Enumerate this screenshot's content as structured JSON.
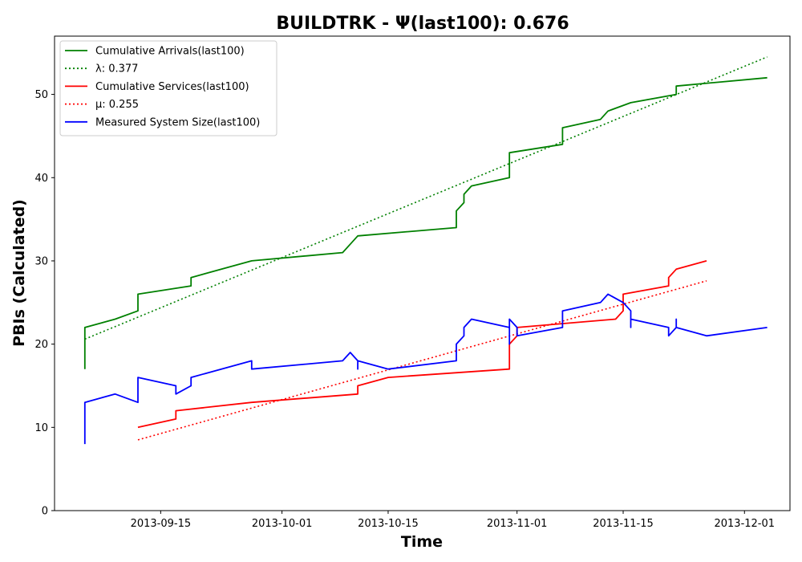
{
  "chart_data": {
    "type": "line",
    "title": "BUILDTRK -  Ψ(last100): 0.676",
    "xlabel": "Time",
    "ylabel": "PBIs (Calculated)",
    "xlim": [
      "2013-09-01",
      "2013-12-07"
    ],
    "ylim": [
      0,
      57
    ],
    "x_ticks": [
      "2013-09-15",
      "2013-10-01",
      "2013-10-15",
      "2013-11-01",
      "2013-11-15",
      "2013-12-01"
    ],
    "y_ticks": [
      0,
      10,
      20,
      30,
      40,
      50
    ],
    "grid": false,
    "legend_position": "upper-left",
    "series": [
      {
        "name": "Cumulative Arrivals(last100)",
        "color": "#008000",
        "style": "solid",
        "points": [
          [
            "2013-09-05",
            17
          ],
          [
            "2013-09-05",
            22
          ],
          [
            "2013-09-09",
            23
          ],
          [
            "2013-09-12",
            24
          ],
          [
            "2013-09-12",
            26
          ],
          [
            "2013-09-19",
            27
          ],
          [
            "2013-09-19",
            28
          ],
          [
            "2013-09-23",
            29
          ],
          [
            "2013-09-27",
            30
          ],
          [
            "2013-10-09",
            31
          ],
          [
            "2013-10-10",
            32
          ],
          [
            "2013-10-11",
            33
          ],
          [
            "2013-10-24",
            34
          ],
          [
            "2013-10-24",
            36
          ],
          [
            "2013-10-25",
            37
          ],
          [
            "2013-10-25",
            38
          ],
          [
            "2013-10-26",
            39
          ],
          [
            "2013-10-31",
            40
          ],
          [
            "2013-10-31",
            43
          ],
          [
            "2013-11-07",
            44
          ],
          [
            "2013-11-07",
            46
          ],
          [
            "2013-11-12",
            47
          ],
          [
            "2013-11-13",
            48
          ],
          [
            "2013-11-16",
            49
          ],
          [
            "2013-11-22",
            50
          ],
          [
            "2013-11-22",
            51
          ],
          [
            "2013-12-04",
            52
          ]
        ]
      },
      {
        "name": "λ: 0.377",
        "color": "#008000",
        "style": "dotted",
        "points": [
          [
            "2013-09-05",
            20.6
          ],
          [
            "2013-12-04",
            54.5
          ]
        ]
      },
      {
        "name": "Cumulative Services(last100)",
        "color": "#ff0000",
        "style": "solid",
        "points": [
          [
            "2013-09-12",
            10
          ],
          [
            "2013-09-17",
            11
          ],
          [
            "2013-09-17",
            12
          ],
          [
            "2013-09-27",
            13
          ],
          [
            "2013-10-11",
            14
          ],
          [
            "2013-10-11",
            15
          ],
          [
            "2013-10-15",
            16
          ],
          [
            "2013-10-31",
            17
          ],
          [
            "2013-10-31",
            19
          ],
          [
            "2013-10-31",
            20
          ],
          [
            "2013-11-01",
            21
          ],
          [
            "2013-11-01",
            22
          ],
          [
            "2013-11-14",
            23
          ],
          [
            "2013-11-15",
            24
          ],
          [
            "2013-11-15",
            26
          ],
          [
            "2013-11-21",
            27
          ],
          [
            "2013-11-21",
            28
          ],
          [
            "2013-11-22",
            29
          ],
          [
            "2013-11-26",
            30
          ]
        ]
      },
      {
        "name": "μ: 0.255",
        "color": "#ff0000",
        "style": "dotted",
        "points": [
          [
            "2013-09-12",
            8.5
          ],
          [
            "2013-11-26",
            27.6
          ]
        ]
      },
      {
        "name": "Measured System Size(last100)",
        "color": "#0000ff",
        "style": "solid",
        "points": [
          [
            "2013-09-05",
            8
          ],
          [
            "2013-09-05",
            13
          ],
          [
            "2013-09-09",
            14
          ],
          [
            "2013-09-12",
            13
          ],
          [
            "2013-09-12",
            16
          ],
          [
            "2013-09-17",
            15
          ],
          [
            "2013-09-17",
            14
          ],
          [
            "2013-09-19",
            15
          ],
          [
            "2013-09-19",
            16
          ],
          [
            "2013-09-27",
            18
          ],
          [
            "2013-09-27",
            17
          ],
          [
            "2013-10-09",
            18
          ],
          [
            "2013-10-10",
            19
          ],
          [
            "2013-10-11",
            18
          ],
          [
            "2013-10-11",
            17
          ],
          [
            "2013-10-11",
            18
          ],
          [
            "2013-10-15",
            17
          ],
          [
            "2013-10-24",
            18
          ],
          [
            "2013-10-24",
            20
          ],
          [
            "2013-10-25",
            21
          ],
          [
            "2013-10-25",
            22
          ],
          [
            "2013-10-26",
            23
          ],
          [
            "2013-10-31",
            22
          ],
          [
            "2013-10-31",
            20
          ],
          [
            "2013-10-31",
            23
          ],
          [
            "2013-11-01",
            22
          ],
          [
            "2013-11-01",
            21
          ],
          [
            "2013-11-07",
            22
          ],
          [
            "2013-11-07",
            24
          ],
          [
            "2013-11-12",
            25
          ],
          [
            "2013-11-13",
            26
          ],
          [
            "2013-11-15",
            25
          ],
          [
            "2013-11-16",
            24
          ],
          [
            "2013-11-16",
            22
          ],
          [
            "2013-11-16",
            23
          ],
          [
            "2013-11-21",
            22
          ],
          [
            "2013-11-21",
            21
          ],
          [
            "2013-11-22",
            22
          ],
          [
            "2013-11-22",
            23
          ],
          [
            "2013-11-22",
            22
          ],
          [
            "2013-11-26",
            21
          ],
          [
            "2013-12-04",
            22
          ]
        ]
      }
    ]
  }
}
